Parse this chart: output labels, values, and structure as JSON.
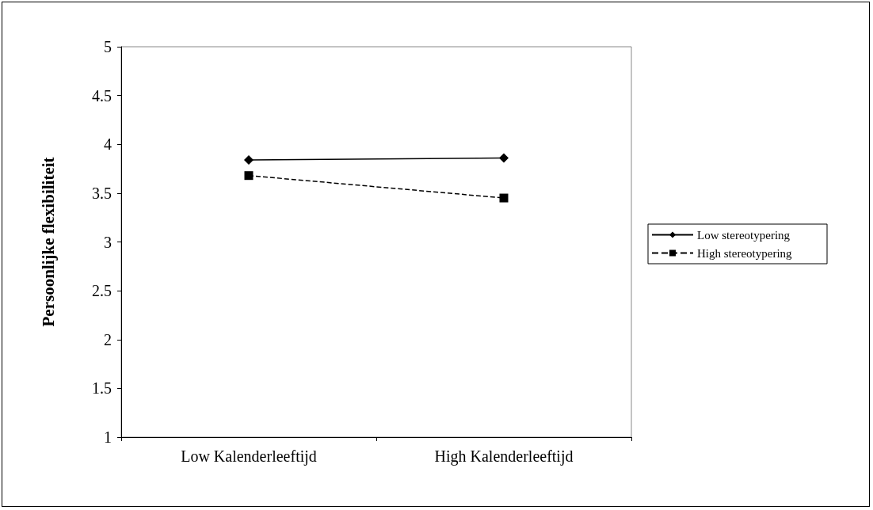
{
  "chart_data": {
    "type": "line",
    "ylabel": "Persoonlijke flexibiliteit",
    "categories": [
      "Low Kalenderleeftijd",
      "High Kalenderleeftijd"
    ],
    "series": [
      {
        "name": "Low stereotypering",
        "color": "#000000",
        "values": [
          3.84,
          3.86
        ],
        "marker": "diamond",
        "line_style": "solid"
      },
      {
        "name": "High stereotypering",
        "color": "#000000",
        "values": [
          3.68,
          3.45
        ],
        "marker": "square",
        "line_style": "dashed"
      }
    ],
    "ylim": [
      1,
      5
    ],
    "yticks": [
      1,
      1.5,
      2,
      2.5,
      3,
      3.5,
      4,
      4.5,
      5
    ],
    "grid": false,
    "legend": "right"
  }
}
